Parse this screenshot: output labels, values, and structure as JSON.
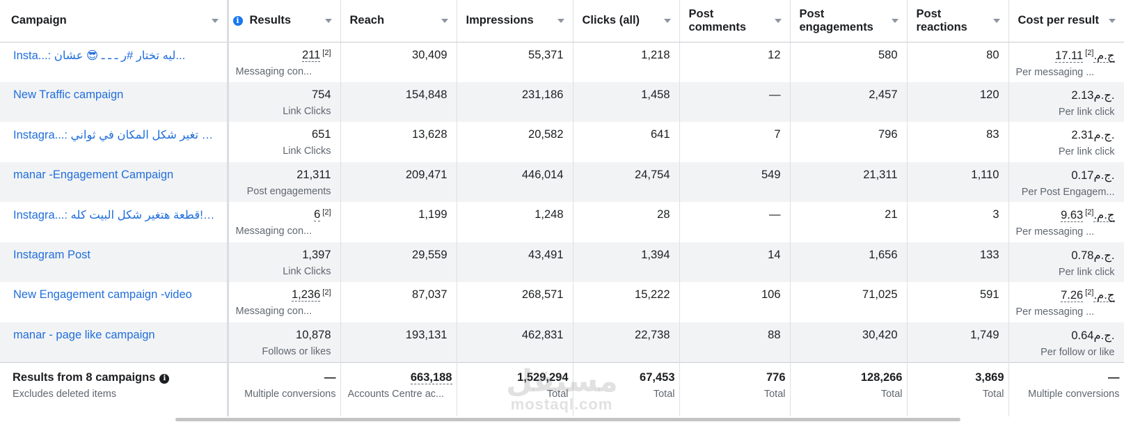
{
  "headers": {
    "campaign": "Campaign",
    "results": "Results",
    "reach": "Reach",
    "impressions": "Impressions",
    "clicks": "Clicks (all)",
    "post_comments": "Post comments",
    "post_engagements": "Post engagements",
    "post_reactions": "Post reactions",
    "cost_per_result": "Cost per result"
  },
  "rows": [
    {
      "campaign": "Insta...: ليه تختار #ر ـ ـ ـ 😎 عشان...",
      "results": "211",
      "results_note": "[2]",
      "results_type": "Messaging con...",
      "reach": "30,409",
      "impressions": "55,371",
      "clicks": "1,218",
      "post_comments": "12",
      "post_engagements": "580",
      "post_reactions": "80",
      "cost": "17.11ج.م.",
      "cost_note": "[2]",
      "cost_type": "Per messaging ..."
    },
    {
      "campaign": "New Traffic campaign",
      "results": "754",
      "results_note": "",
      "results_type": "Link Clicks",
      "reach": "154,848",
      "impressions": "231,186",
      "clicks": "1,458",
      "post_comments": "—",
      "post_engagements": "2,457",
      "post_reactions": "120",
      "cost": "2.13ج.م.",
      "cost_note": "",
      "cost_type": "Per link click"
    },
    {
      "campaign": "Instagra...: ازاي تغير شكل المكان في ثواني...",
      "results": "651",
      "results_note": "",
      "results_type": "Link Clicks",
      "reach": "13,628",
      "impressions": "20,582",
      "clicks": "641",
      "post_comments": "7",
      "post_engagements": "796",
      "post_reactions": "83",
      "cost": "2.31ج.م.",
      "cost_note": "",
      "cost_type": "Per link click"
    },
    {
      "campaign": "manar -Engagement Campaign",
      "results": "21,311",
      "results_note": "",
      "results_type": "Post engagements",
      "reach": "209,471",
      "impressions": "446,014",
      "clicks": "24,754",
      "post_comments": "549",
      "post_engagements": "21,311",
      "post_reactions": "1,110",
      "cost": "0.17ج.م.",
      "cost_note": "",
      "cost_type": "Per Post Engagem..."
    },
    {
      "campaign": "Instagra...: قطعة هتغير شكل البيت كله! 🔥 ...",
      "results": "6",
      "results_note": "[2]",
      "results_type": "Messaging con...",
      "reach": "1,199",
      "impressions": "1,248",
      "clicks": "28",
      "post_comments": "—",
      "post_engagements": "21",
      "post_reactions": "3",
      "cost": "9.63ج.م.",
      "cost_note": "[2]",
      "cost_type": "Per messaging ..."
    },
    {
      "campaign": "Instagram Post",
      "results": "1,397",
      "results_note": "",
      "results_type": "Link Clicks",
      "reach": "29,559",
      "impressions": "43,491",
      "clicks": "1,394",
      "post_comments": "14",
      "post_engagements": "1,656",
      "post_reactions": "133",
      "cost": "0.78ج.م.",
      "cost_note": "",
      "cost_type": "Per link click"
    },
    {
      "campaign": "New Engagement campaign -video",
      "results": "1,236",
      "results_note": "[2]",
      "results_type": "Messaging con...",
      "reach": "87,037",
      "impressions": "268,571",
      "clicks": "15,222",
      "post_comments": "106",
      "post_engagements": "71,025",
      "post_reactions": "591",
      "cost": "7.26ج.م.",
      "cost_note": "[2]",
      "cost_type": "Per messaging ..."
    },
    {
      "campaign": "manar - page like campaign",
      "results": "10,878",
      "results_note": "",
      "results_type": "Follows or likes",
      "reach": "193,131",
      "impressions": "462,831",
      "clicks": "22,738",
      "post_comments": "88",
      "post_engagements": "30,420",
      "post_reactions": "1,749",
      "cost": "0.64ج.م.",
      "cost_note": "",
      "cost_type": "Per follow or like"
    }
  ],
  "footer": {
    "title": "Results from 8 campaigns",
    "subtitle": "Excludes deleted items",
    "results": "—",
    "results_sub": "Multiple conversions",
    "reach": "663,188",
    "reach_sub": "Accounts Centre ac...",
    "impressions": "1,529,294",
    "impressions_sub": "Total",
    "clicks": "67,453",
    "clicks_sub": "Total",
    "post_comments": "776",
    "post_comments_sub": "Total",
    "post_engagements": "128,266",
    "post_engagements_sub": "Total",
    "post_reactions": "3,869",
    "post_reactions_sub": "Total",
    "cost": "—",
    "cost_sub": "Multiple conversions"
  },
  "watermark": {
    "arabic": "مستقل",
    "latin": "mostaql.com"
  }
}
